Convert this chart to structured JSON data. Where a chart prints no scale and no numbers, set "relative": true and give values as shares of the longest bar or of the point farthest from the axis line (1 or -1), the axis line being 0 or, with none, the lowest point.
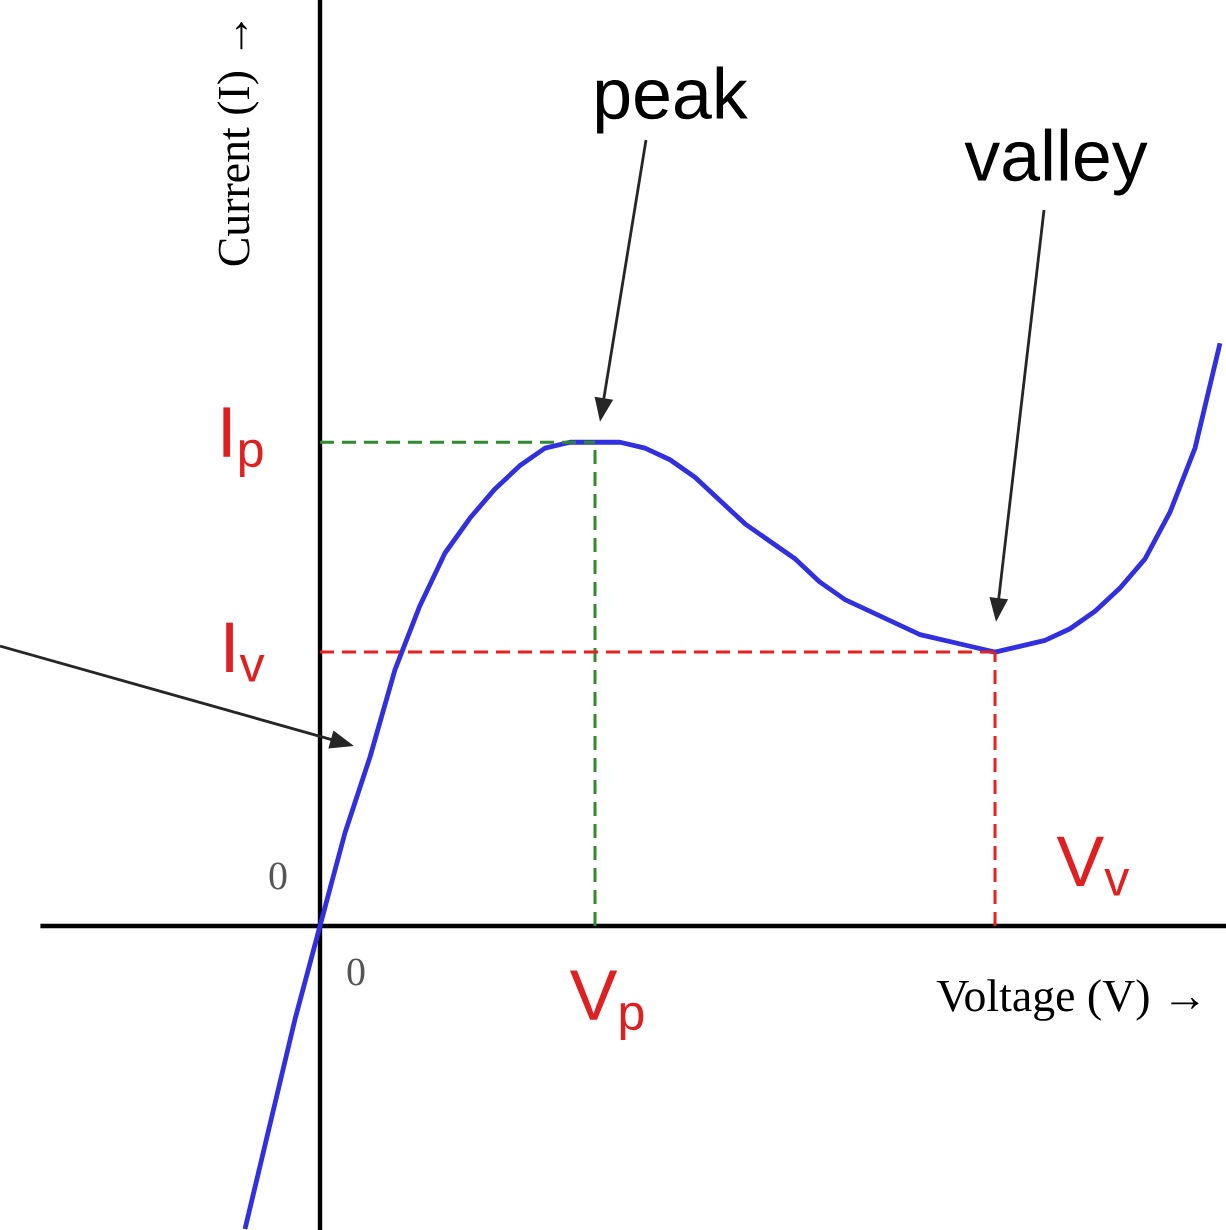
{
  "chart_data": {
    "type": "line",
    "xlabel": "Voltage (V) →",
    "ylabel": "Current (I) →",
    "relative": true,
    "categories": [
      null,
      null,
      null,
      null,
      null,
      null,
      null,
      null,
      null,
      null,
      null,
      null,
      null,
      null,
      null,
      null,
      null,
      null,
      null,
      null,
      null,
      null,
      null,
      null,
      null,
      null,
      null,
      null,
      null,
      null,
      null,
      null,
      null,
      null,
      null,
      null,
      null,
      null,
      null,
      null
    ],
    "values": [
      -0.52,
      -0.34,
      -0.16,
      0,
      0.16,
      0.29,
      0.44,
      0.55,
      0.64,
      0.7,
      0.75,
      0.79,
      0.82,
      0.83,
      0.83,
      0.83,
      0.82,
      0.8,
      0.77,
      0.73,
      0.69,
      0.66,
      0.63,
      0.59,
      0.56,
      0.54,
      0.52,
      0.5,
      0.49,
      0.48,
      0.47,
      0.48,
      0.49,
      0.51,
      0.54,
      0.58,
      0.63,
      0.71,
      0.82,
      1
    ],
    "color": "#3030e0",
    "ref_lines": [
      {
        "axis": "y",
        "value": 0.83,
        "label": "I$_{p}$",
        "color": "#2e8b2e",
        "line_style": "dashed"
      },
      {
        "axis": "y",
        "value": 0.47,
        "label": "I$_{v}$",
        "color": "#e82020",
        "line_style": "dashed"
      }
    ],
    "annotations": [
      "peak",
      "valley",
      "0",
      "0",
      "V$_{p}$",
      "V$_{v}$"
    ]
  }
}
